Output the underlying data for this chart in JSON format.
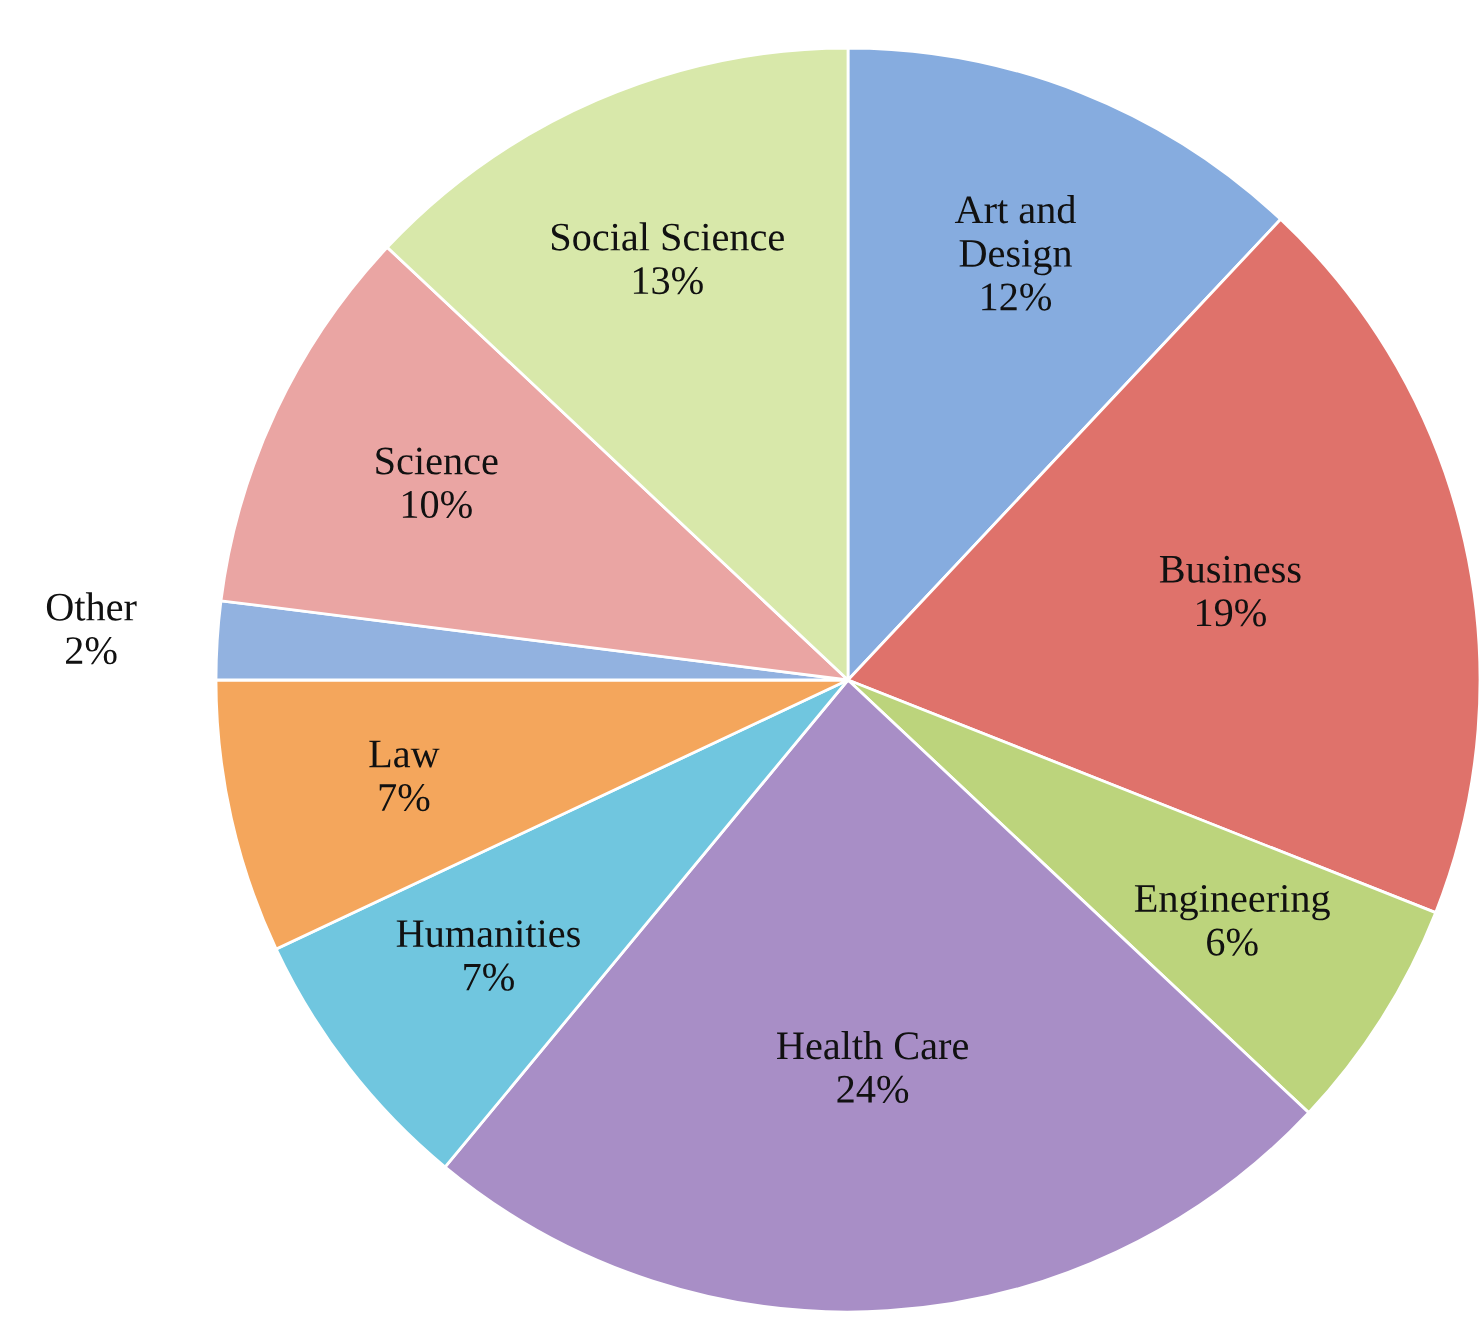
{
  "chart_data": {
    "type": "pie",
    "categories": [
      "Art and\nDesign",
      "Business",
      "Engineering",
      "Health Care",
      "Humanities",
      "Law",
      "Other",
      "Science",
      "Social Science"
    ],
    "values": [
      12,
      19,
      6,
      24,
      7,
      7,
      2,
      10,
      13
    ],
    "value_labels": [
      "12%",
      "19%",
      "6%",
      "24%",
      "7%",
      "7%",
      "2%",
      "10%",
      "13%"
    ],
    "colors": [
      "#86acdf",
      "#df726b",
      "#bcd47c",
      "#a88ec6",
      "#70c6df",
      "#f4a65c",
      "#92b2e0",
      "#eaa5a3",
      "#d8e8aa"
    ],
    "legend": false
  }
}
